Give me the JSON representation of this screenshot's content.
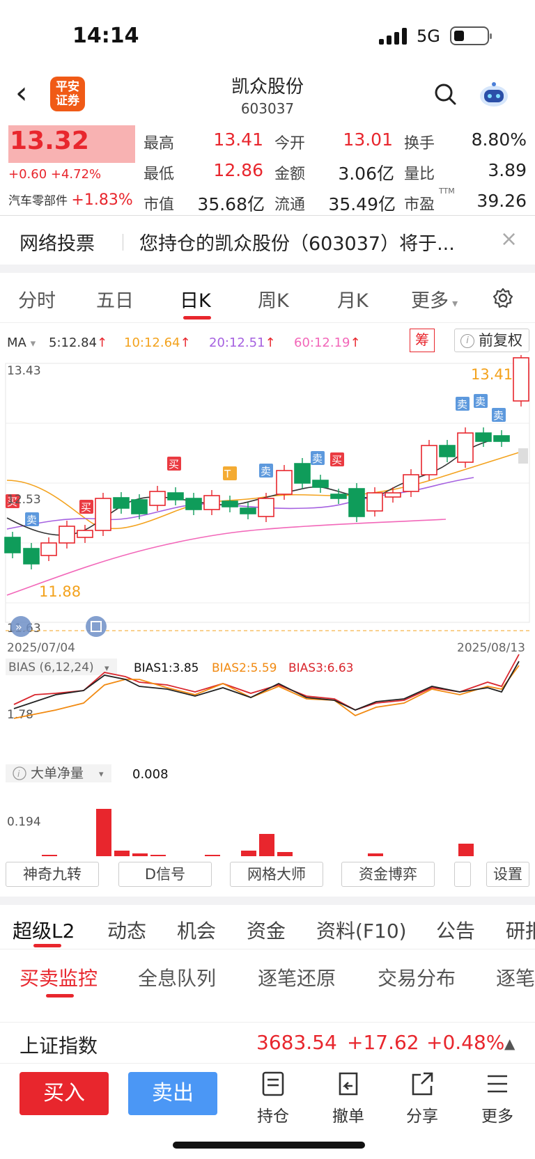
{
  "status": {
    "time": "14:14",
    "network": "5G"
  },
  "header": {
    "back": "‹",
    "broker_logo_line1": "平安",
    "broker_logo_line2": "证券",
    "name": "凯众股份",
    "code": "603037"
  },
  "quote": {
    "price": "13.32",
    "change": "+0.60 +4.72%",
    "sector_label": "汽车零部件",
    "sector_change": "+1.83%",
    "fields": [
      {
        "label": "最高",
        "value": "13.41"
      },
      {
        "label": "今开",
        "value": "13.01"
      },
      {
        "label": "换手",
        "value": "8.80%"
      },
      {
        "label": "最低",
        "value": "12.86"
      },
      {
        "label": "金额",
        "value": "3.06亿"
      },
      {
        "label": "量比",
        "value": "3.89"
      },
      {
        "label": "市值",
        "value": "35.68亿"
      },
      {
        "label": "流通",
        "value": "35.49亿"
      },
      {
        "label": "市盈",
        "value": "39.26"
      }
    ],
    "pe_sup": "TTM"
  },
  "notice": {
    "title": "网络投票",
    "message": "您持仓的凯众股份（603037）将于...",
    "close": "×"
  },
  "kline_tabs": [
    "分时",
    "五日",
    "日K",
    "周K",
    "月K",
    "更多"
  ],
  "ma": {
    "label": "MA",
    "ma5": "5:12.84",
    "ma10": "10:12.64",
    "ma20": "20:12.51",
    "ma60": "60:12.19",
    "arrow": "↑",
    "chip_button": "筹",
    "adjust_button": "前复权"
  },
  "chart": {
    "y_top": "13.43",
    "y_mid": "12.53",
    "y_bottom": "11.63",
    "high_label": "13.41",
    "low_label": "11.88",
    "date_start": "2025/07/04",
    "date_end": "2025/08/13",
    "bias_label": "BIAS (6,12,24)",
    "bias1": "BIAS1:3.85",
    "bias2": "BIAS2:5.59",
    "bias3": "BIAS3:6.63",
    "bias_axis": "1.78",
    "dadan_label": "大单净量",
    "dadan_value": "0.008",
    "dadan_axis": "0.194",
    "signal_buy": "买",
    "signal_sell": "卖",
    "signal_t": "T"
  },
  "chart_data": {
    "type": "candlestick",
    "dates": [
      "2025/07/04",
      "2025/08/13"
    ],
    "ylim": [
      11.63,
      13.43
    ],
    "last_close": 13.32,
    "high": 13.41,
    "low": 11.88
  },
  "tools": [
    "神奇九转",
    "D信号",
    "网格大师",
    "资金博弈",
    "",
    "设置"
  ],
  "f10_tabs": [
    "超级L2",
    "动态",
    "机会",
    "资金",
    "资料(F10)",
    "公告",
    "研报"
  ],
  "sub_tabs": [
    "买卖监控",
    "全息队列",
    "逐笔还原",
    "交易分布",
    "逐笔"
  ],
  "index_bar": {
    "name": "上证指数",
    "value": "3683.54",
    "change": "+17.62",
    "pct": "+0.48%",
    "arrow": "▲"
  },
  "actions": {
    "buy": "买入",
    "sell": "卖出",
    "hold": "持仓",
    "cancel": "撤单",
    "share": "分享",
    "more": "更多"
  },
  "colors": {
    "up": "#e8262d",
    "down": "#0f9c5a",
    "buy_button": "#e8262d",
    "sell_button": "#4b97f5"
  }
}
